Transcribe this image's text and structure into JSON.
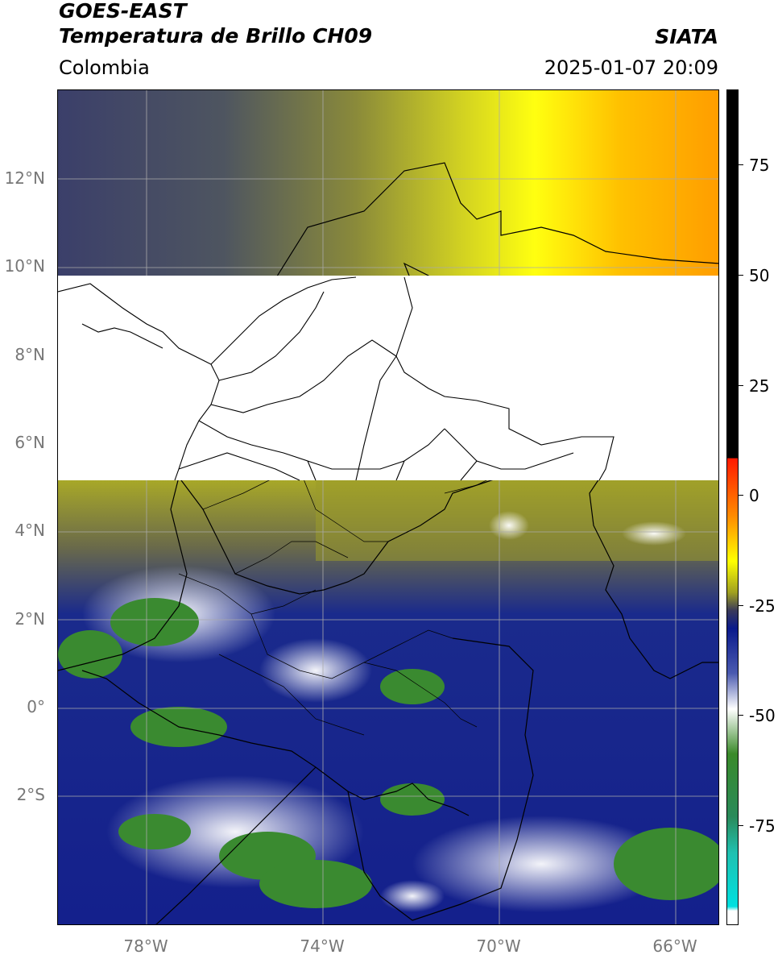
{
  "header": {
    "title_line1": "GOES-EAST",
    "title_line2": "Temperatura de Brillo CH09",
    "region": "Colombia",
    "org": "SIATA",
    "datetime": "2025-01-07 20:09"
  },
  "map": {
    "lat_labels": [
      "12°N",
      "10°N",
      "8°N",
      "6°N",
      "4°N",
      "2°N",
      "0°",
      "2°S"
    ],
    "lon_labels": [
      "78°W",
      "74°W",
      "70°W",
      "66°W"
    ],
    "lon_range": [
      -80,
      -65
    ],
    "lat_range": [
      -5,
      14
    ],
    "missing_band_lat": [
      5.2,
      9.8
    ]
  },
  "colorbar": {
    "labels": [
      "75",
      "50",
      "25",
      "0",
      "-25",
      "-50",
      "-75"
    ],
    "stops": [
      {
        "v": 90,
        "c": "#000000"
      },
      {
        "v": 8,
        "c": "#000000"
      },
      {
        "v": 7.9,
        "c": "#ff1a00"
      },
      {
        "v": -5,
        "c": "#ff8c00"
      },
      {
        "v": -15,
        "c": "#ffff00"
      },
      {
        "v": -22,
        "c": "#a0a020"
      },
      {
        "v": -26,
        "c": "#3a3a5a"
      },
      {
        "v": -30,
        "c": "#0a1a8c"
      },
      {
        "v": -40,
        "c": "#4a5ab0"
      },
      {
        "v": -48,
        "c": "#ffffff"
      },
      {
        "v": -58,
        "c": "#3a8a2a"
      },
      {
        "v": -72,
        "c": "#2a8a5a"
      },
      {
        "v": -80,
        "c": "#20c0b0"
      },
      {
        "v": -92,
        "c": "#00e0e0"
      },
      {
        "v": -93,
        "c": "#ffffff"
      },
      {
        "v": -96,
        "c": "#ffffff"
      }
    ]
  }
}
